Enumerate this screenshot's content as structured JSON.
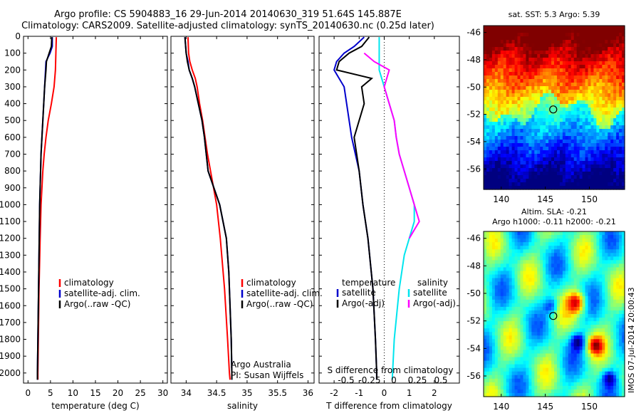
{
  "header": {
    "line1": "Argo profile: CS 5904883_16 29-Jun-2014 20140630_319 51.64S 145.887E",
    "line2": "Climatology: CARS2009. Satellite-adjusted climatology: synTS_20140630.nc (0.25d later)"
  },
  "footer_stamp": "IMOS 07-Jul-2014 20:00:43",
  "colors": {
    "climatology": "#ff0000",
    "satellite": "#0000cc",
    "argo": "#000000",
    "sal_sat": "#00e5ee",
    "sal_argo": "#ff00ff"
  },
  "chart_data": [
    {
      "type": "line",
      "name": "temperature_profile",
      "xlabel": "temperature (deg C)",
      "ylabel": "",
      "xlim": [
        -1,
        31
      ],
      "ylim": [
        2060,
        0
      ],
      "xticks": [
        0,
        5,
        10,
        15,
        20,
        25,
        30
      ],
      "yticks": [
        0,
        100,
        200,
        300,
        400,
        500,
        600,
        700,
        800,
        900,
        1000,
        1100,
        1200,
        1300,
        1400,
        1500,
        1600,
        1700,
        1800,
        1900,
        2000
      ],
      "legend": [
        "climatology",
        "satellite-adj. clim.",
        "Argo(..raw -QC)"
      ],
      "series": [
        {
          "key": "climatology",
          "color": "#ff0000",
          "depth": [
            5,
            100,
            200,
            300,
            400,
            500,
            600,
            700,
            800,
            1000,
            1200,
            1500,
            1800,
            2000,
            2040
          ],
          "values": [
            6.3,
            6.2,
            6.1,
            5.8,
            5.2,
            4.5,
            4.0,
            3.6,
            3.3,
            2.9,
            2.7,
            2.45,
            2.3,
            2.2,
            2.2
          ]
        },
        {
          "key": "satellite",
          "color": "#0000cc",
          "depth": [
            5,
            60,
            100,
            150,
            200,
            300,
            400,
            500,
            600,
            700,
            800,
            1000,
            1200,
            1500,
            1800,
            2000,
            2040
          ],
          "values": [
            5.4,
            5.4,
            4.9,
            4.0,
            3.9,
            3.7,
            3.5,
            3.3,
            3.1,
            2.9,
            2.8,
            2.6,
            2.5,
            2.35,
            2.2,
            2.1,
            2.1
          ]
        },
        {
          "key": "argo",
          "color": "#000000",
          "depth": [
            5,
            60,
            100,
            150,
            200,
            300,
            400,
            500,
            600,
            700,
            800,
            1000,
            1200,
            1500,
            1800,
            2000,
            2040
          ],
          "values": [
            5.3,
            5.2,
            4.7,
            4.1,
            4.0,
            3.7,
            3.5,
            3.3,
            3.1,
            2.9,
            2.8,
            2.6,
            2.5,
            2.35,
            2.2,
            2.1,
            2.1
          ]
        }
      ]
    },
    {
      "type": "line",
      "name": "salinity_profile",
      "xlabel": "salinity",
      "ylabel": "",
      "xlim": [
        33.75,
        36.1
      ],
      "ylim": [
        2060,
        0
      ],
      "xticks": [
        34,
        34.5,
        35,
        35.5,
        36
      ],
      "legend": [
        "climatology",
        "satellite-adj. clim.",
        "Argo(..raw -QC)"
      ],
      "annotation": [
        "Argo Australia",
        "PI: Susan Wijffels"
      ],
      "series": [
        {
          "key": "climatology",
          "color": "#ff0000",
          "depth": [
            5,
            100,
            150,
            200,
            250,
            300,
            400,
            500,
            600,
            700,
            800,
            1000,
            1200,
            1500,
            1800,
            2000,
            2040
          ],
          "values": [
            34.03,
            34.04,
            34.06,
            34.1,
            34.15,
            34.18,
            34.22,
            34.27,
            34.31,
            34.35,
            34.4,
            34.5,
            34.56,
            34.63,
            34.68,
            34.71,
            34.72
          ]
        },
        {
          "key": "satellite",
          "color": "#0000cc",
          "depth": [
            5,
            100,
            150,
            200,
            250,
            300,
            400,
            500,
            600,
            700,
            800,
            1000,
            1200,
            1400,
            1600,
            1800,
            2000,
            2040
          ],
          "values": [
            33.98,
            34.0,
            34.03,
            34.05,
            34.1,
            34.14,
            34.2,
            34.26,
            34.3,
            34.33,
            34.36,
            34.55,
            34.66,
            34.7,
            34.72,
            34.74,
            34.75,
            34.75
          ]
        },
        {
          "key": "argo",
          "color": "#000000",
          "depth": [
            5,
            100,
            150,
            200,
            250,
            300,
            400,
            500,
            600,
            700,
            800,
            1000,
            1200,
            1400,
            1600,
            1800,
            2000,
            2040
          ],
          "values": [
            33.98,
            34.0,
            34.02,
            34.05,
            34.1,
            34.14,
            34.2,
            34.26,
            34.3,
            34.33,
            34.36,
            34.55,
            34.66,
            34.7,
            34.72,
            34.74,
            34.75,
            34.75
          ]
        }
      ]
    },
    {
      "type": "line",
      "name": "difference_profile",
      "xlabel": "T difference from climatology",
      "ylabel": "",
      "top_axis_label": "S difference from climatology",
      "xlim": [
        -2.6,
        3.0
      ],
      "ylim": [
        2060,
        0
      ],
      "xticks": [
        -2,
        -1,
        0,
        1,
        2
      ],
      "top_ticks": [
        "-0.5",
        "-0.25",
        "0",
        "0.25",
        "0.5"
      ],
      "legend": {
        "temperature": [
          "satellite",
          "Argo(-adj)"
        ],
        "salinity": [
          "satellite",
          "Argo(-adj)"
        ]
      },
      "legend_titles": [
        "temperature",
        "salinity"
      ],
      "series": [
        {
          "key": "t_satellite",
          "color": "#0000cc",
          "depth": [
            5,
            60,
            100,
            150,
            200,
            250,
            300,
            400,
            500,
            600,
            700,
            800,
            1000,
            1200,
            1500,
            1800,
            2000,
            2040
          ],
          "values": [
            -0.8,
            -1.2,
            -1.6,
            -1.9,
            -2.0,
            -1.8,
            -1.6,
            -1.5,
            -1.4,
            -1.3,
            -1.15,
            -1.0,
            -0.85,
            -0.65,
            -0.45,
            -0.35,
            -0.3,
            -0.3
          ]
        },
        {
          "key": "t_argo",
          "color": "#000000",
          "depth": [
            5,
            60,
            100,
            150,
            200,
            250,
            300,
            400,
            500,
            600,
            700,
            800,
            1000,
            1200,
            1500,
            1800,
            2000,
            2040
          ],
          "values": [
            -0.6,
            -0.9,
            -1.4,
            -1.8,
            -1.9,
            -0.5,
            -0.9,
            -0.8,
            -1.0,
            -1.2,
            -1.1,
            -1.0,
            -0.85,
            -0.65,
            -0.45,
            -0.35,
            -0.3,
            -0.3
          ]
        },
        {
          "key": "s_satellite",
          "color": "#00e5ee",
          "depth": [
            5,
            100,
            200,
            300,
            400,
            500,
            600,
            700,
            800,
            900,
            1000,
            1100,
            1200,
            1300,
            1500,
            1800,
            2040
          ],
          "values": [
            -0.05,
            -0.05,
            -0.05,
            0,
            0.05,
            0.1,
            0.12,
            0.15,
            0.2,
            0.25,
            0.3,
            0.3,
            0.25,
            0.2,
            0.15,
            0.1,
            0.08
          ]
        },
        {
          "key": "s_argo",
          "color": "#ff00ff",
          "depth": [
            100,
            150,
            200,
            300,
            400,
            500,
            600,
            700,
            800,
            900,
            1000,
            1100,
            1200
          ],
          "values": [
            -0.2,
            -0.1,
            0.05,
            0.0,
            0.05,
            0.1,
            0.12,
            0.15,
            0.2,
            0.25,
            0.3,
            0.35,
            0.25
          ]
        }
      ]
    },
    {
      "type": "heatmap",
      "name": "sst_map",
      "title": "sat. SST: 5.3 Argo: 5.39",
      "xlim": [
        138,
        154
      ],
      "ylim": [
        -57.5,
        -45.5
      ],
      "xticks": [
        140,
        145,
        150
      ],
      "yticks": [
        -46,
        -48,
        -50,
        -52,
        -54,
        -56
      ],
      "marker": {
        "lon": 145.9,
        "lat": -51.64
      }
    },
    {
      "type": "heatmap",
      "name": "sla_map",
      "title_lines": [
        "Altim. SLA: -0.21",
        "Argo h1000: -0.11 h2000: -0.21"
      ],
      "xlim": [
        138,
        154
      ],
      "ylim": [
        -57.5,
        -45.5
      ],
      "xticks": [
        140,
        145,
        150
      ],
      "yticks": [
        -46,
        -48,
        -50,
        -52,
        -54,
        -56
      ],
      "marker": {
        "lon": 145.9,
        "lat": -51.64
      }
    }
  ]
}
